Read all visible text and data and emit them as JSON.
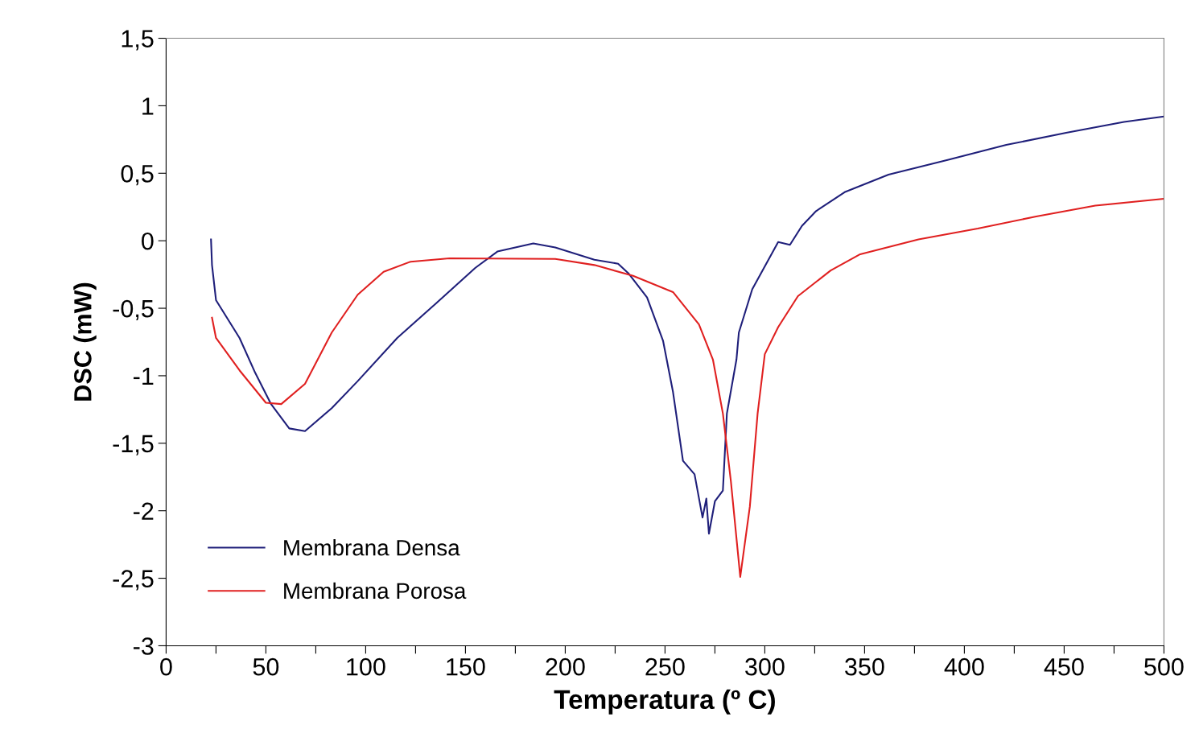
{
  "chart_data": {
    "type": "line",
    "xlabel": "Temperatura (º C)",
    "ylabel": "DSC (mW)",
    "xlim": [
      0,
      500
    ],
    "ylim": [
      -3,
      1.5
    ],
    "xticks": [
      0,
      {
        "value": 25,
        "label": null
      },
      50,
      {
        "value": 75,
        "label": null
      },
      100,
      {
        "value": 125,
        "label": null
      },
      150,
      {
        "value": 175,
        "label": null
      },
      200,
      {
        "value": 225,
        "label": null
      },
      250,
      {
        "value": 275,
        "label": null
      },
      300,
      {
        "value": 325,
        "label": null
      },
      350,
      {
        "value": 375,
        "label": null
      },
      400,
      {
        "value": 425,
        "label": null
      },
      450,
      {
        "value": 475,
        "label": null
      },
      500
    ],
    "yticks": [
      {
        "value": -3,
        "label": "-3"
      },
      {
        "value": -2.5,
        "label": "-2,5"
      },
      {
        "value": -2,
        "label": "-2"
      },
      {
        "value": -1.5,
        "label": "-1,5"
      },
      {
        "value": -1,
        "label": "-1"
      },
      {
        "value": -0.5,
        "label": "-0,5"
      },
      {
        "value": 0,
        "label": "0"
      },
      {
        "value": 0.5,
        "label": "0,5"
      },
      {
        "value": 1,
        "label": "1"
      },
      {
        "value": 1.5,
        "label": "1,5"
      }
    ],
    "grid": false,
    "legend": "bottom left",
    "marker": "none",
    "line_style": "solid",
    "series": [
      {
        "name": "Membrana Densa",
        "color": "#1f1f7a",
        "x": [
          22.5,
          23,
          25,
          36.8,
          44.7,
          52.6,
          61.7,
          69.6,
          83,
          96,
          115.8,
          135.6,
          155,
          166,
          184,
          195,
          214.6,
          226.5,
          231.6,
          241,
          249,
          254,
          259,
          264.8,
          268.8,
          270.7,
          272,
          275,
          279,
          281,
          285.8,
          287,
          293.7,
          306.7,
          312.6,
          318.6,
          325.7,
          340,
          362,
          392,
          421,
          451,
          480,
          499.6
        ],
        "values": [
          0.01,
          -0.18,
          -0.44,
          -0.72,
          -0.98,
          -1.21,
          -1.39,
          -1.41,
          -1.24,
          -1.04,
          -0.72,
          -0.46,
          -0.2,
          -0.08,
          -0.02,
          -0.05,
          -0.14,
          -0.17,
          -0.24,
          -0.42,
          -0.74,
          -1.12,
          -1.63,
          -1.73,
          -2.05,
          -1.91,
          -2.17,
          -1.93,
          -1.85,
          -1.28,
          -0.88,
          -0.68,
          -0.36,
          -0.01,
          -0.03,
          0.11,
          0.22,
          0.36,
          0.49,
          0.6,
          0.71,
          0.8,
          0.88,
          0.92
        ]
      },
      {
        "name": "Membrana Porosa",
        "color": "#e02020",
        "x": [
          23,
          25,
          36.8,
          50,
          57.7,
          69.6,
          83,
          96,
          109,
          122.5,
          142,
          195,
          214.6,
          234,
          254,
          267,
          274,
          279,
          283,
          287.7,
          292.5,
          296.4,
          300,
          306.7,
          316.6,
          333,
          347.8,
          377,
          406.7,
          436,
          465.6,
          499.6
        ],
        "values": [
          -0.57,
          -0.72,
          -0.96,
          -1.2,
          -1.21,
          -1.06,
          -0.68,
          -0.4,
          -0.23,
          -0.155,
          -0.13,
          -0.135,
          -0.18,
          -0.26,
          -0.38,
          -0.62,
          -0.88,
          -1.28,
          -1.78,
          -2.49,
          -1.97,
          -1.28,
          -0.84,
          -0.64,
          -0.41,
          -0.22,
          -0.1,
          0.01,
          0.09,
          0.18,
          0.26,
          0.31
        ]
      }
    ]
  }
}
